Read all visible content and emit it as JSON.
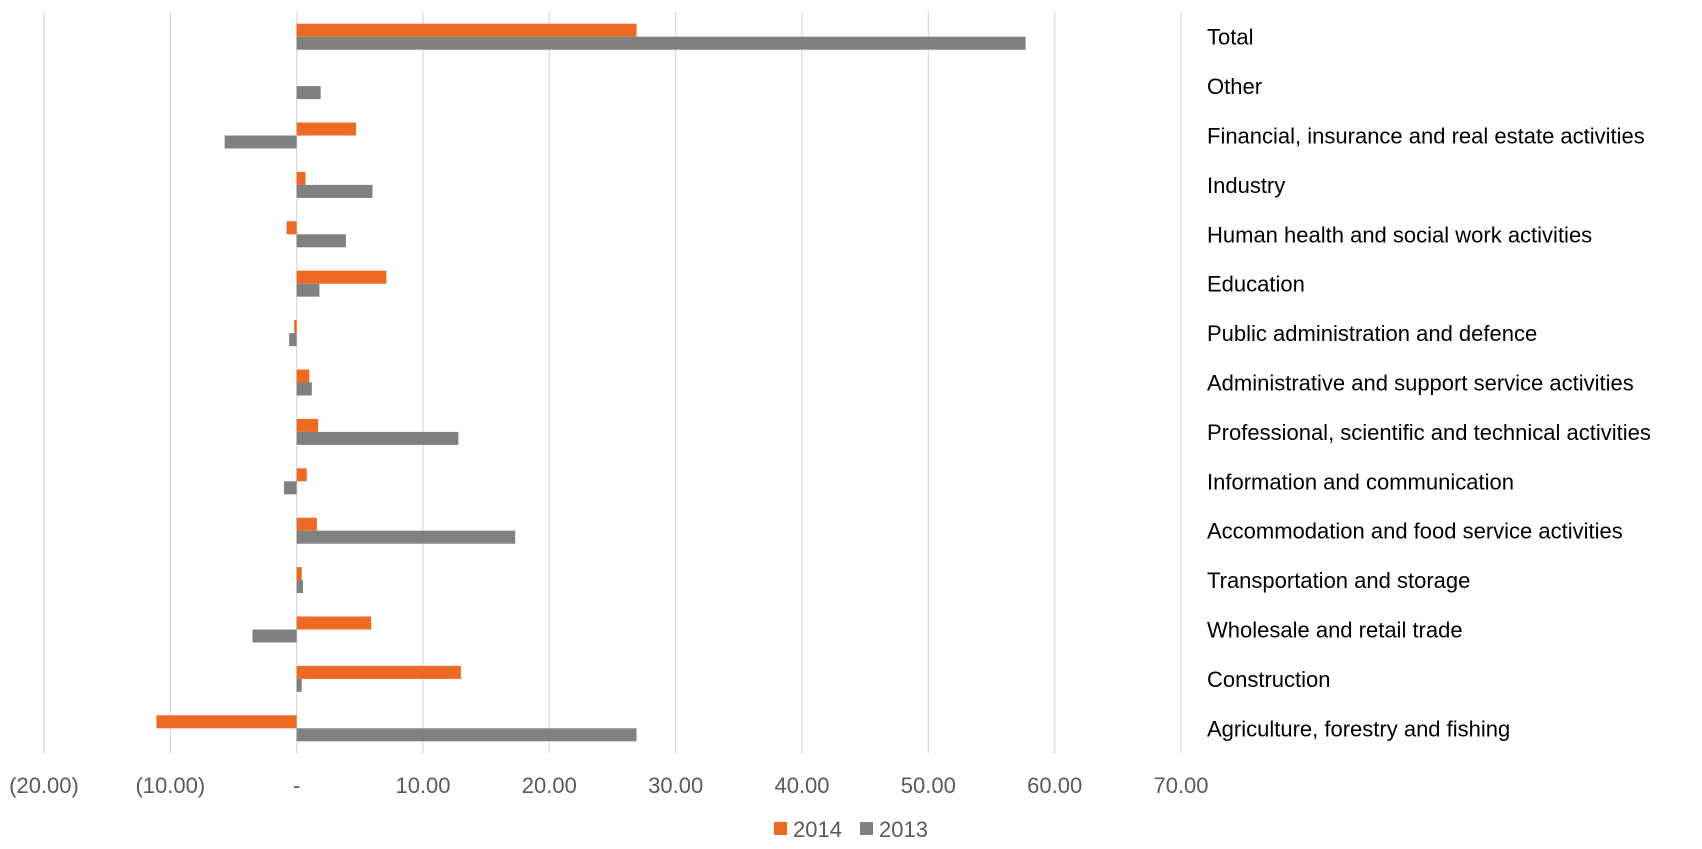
{
  "chart_data": {
    "type": "bar",
    "orientation": "horizontal",
    "title": "",
    "xlabel": "",
    "ylabel": "",
    "xlim": [
      -20,
      70
    ],
    "x_ticks": [
      -20,
      -10,
      0,
      10,
      20,
      30,
      40,
      50,
      60,
      70
    ],
    "x_tick_labels": [
      "(20.00)",
      "(10.00)",
      "-",
      "10.00",
      "20.00",
      "30.00",
      "40.00",
      "50.00",
      "60.00",
      "70.00"
    ],
    "grid": "vertical",
    "legend_position": "bottom",
    "category_labels_position": "right",
    "categories": [
      "Total",
      "Other",
      "Financial, insurance and real estate activities",
      "Industry",
      "Human health and social work activities",
      "Education",
      "Public administration and defence",
      "Administrative and support service activities",
      "Professional, scientific and technical activities",
      "Information and communication",
      "Accommodation and food service activities",
      "Transportation and storage",
      "Wholesale and retail trade",
      "Construction",
      "Agriculture, forestry and fishing"
    ],
    "series": [
      {
        "name": "2014",
        "color": "#ED6A23",
        "values": [
          26.9,
          0.0,
          4.7,
          0.7,
          -0.8,
          7.1,
          -0.2,
          1.0,
          1.7,
          0.8,
          1.6,
          0.4,
          5.9,
          13.0,
          -11.1
        ]
      },
      {
        "name": "2013",
        "color": "#808080",
        "values": [
          57.7,
          1.9,
          -5.7,
          6.0,
          3.9,
          1.8,
          -0.6,
          1.2,
          12.8,
          -1.0,
          17.3,
          0.5,
          -3.5,
          0.4,
          26.9
        ]
      }
    ]
  },
  "colors": {
    "grid": "#D9D9D9",
    "tick_text": "#595959",
    "category_text": "#000000"
  }
}
